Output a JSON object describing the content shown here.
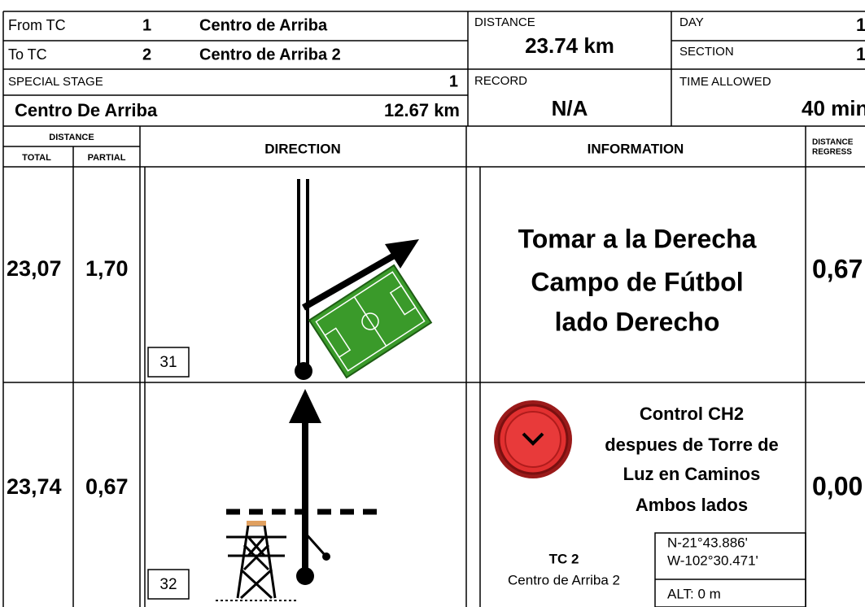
{
  "header": {
    "from_tc": {
      "label": "From TC",
      "number": "1",
      "name": "Centro de Arriba"
    },
    "to_tc": {
      "label": "To TC",
      "number": "2",
      "name": "Centro de Arriba 2"
    },
    "special_stage": {
      "label": "SPECIAL STAGE",
      "number": "1",
      "name": "Centro De Arriba",
      "distance": "12.67 km"
    },
    "distance": {
      "label": "DISTANCE",
      "value": "23.74 km"
    },
    "record": {
      "label": "RECORD",
      "value": "N/A"
    },
    "day": {
      "label": "DAY",
      "value": "1"
    },
    "section": {
      "label": "SECTION",
      "value": "1"
    },
    "time_allowed": {
      "label": "TIME ALLOWED",
      "value": "40 min"
    }
  },
  "columns": {
    "distance": "DISTANCE",
    "total": "TOTAL",
    "partial": "PARTIAL",
    "direction": "DIRECTION",
    "information": "INFORMATION",
    "distance_regress": [
      "DISTANCE",
      "REGRESS"
    ]
  },
  "rows": [
    {
      "total": "23,07",
      "partial": "1,70",
      "box_number": "31",
      "info": [
        "Tomar a la Derecha",
        "Campo de Fútbol",
        "lado Derecho"
      ],
      "regress": "0,67"
    },
    {
      "total": "23,74",
      "partial": "0,67",
      "box_number": "32",
      "info": [
        "Control CH2",
        "despues de Torre de",
        "Luz en Caminos",
        "Ambos lados"
      ],
      "regress": "0,00",
      "tc": {
        "label": "TC 2",
        "name": "Centro de Arriba 2"
      },
      "coords": [
        "N-21°43.886'",
        "W-102°30.471'"
      ],
      "alt": "ALT: 0 m"
    }
  ]
}
